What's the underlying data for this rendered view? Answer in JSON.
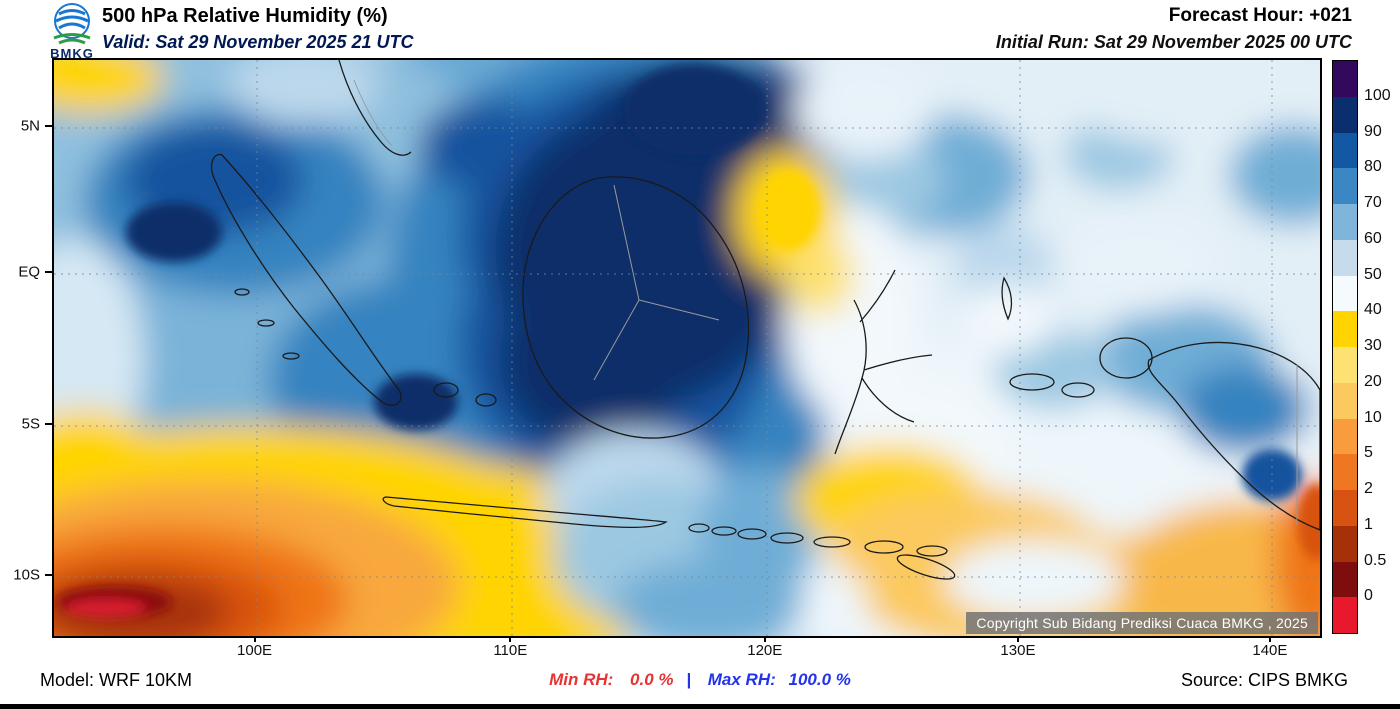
{
  "header": {
    "logo": "BMKG",
    "title": "500 hPa Relative Humidity (%)",
    "valid": "Valid: Sat 29 November 2025 21 UTC",
    "forecast_hour": "Forecast Hour: +021",
    "initial_run": "Initial Run: Sat 29 November 2025 00 UTC"
  },
  "map": {
    "x_ticks": [
      "100E",
      "110E",
      "120E",
      "130E",
      "140E"
    ],
    "y_ticks": [
      "5N",
      "EQ",
      "5S",
      "10S"
    ],
    "copyright": "Copyright Sub Bidang Prediksi Cuaca BMKG , 2025"
  },
  "colorbar": {
    "labels": [
      "100",
      "90",
      "80",
      "70",
      "60",
      "50",
      "40",
      "30",
      "20",
      "10",
      "5",
      "2",
      "1",
      "0.5",
      "0"
    ],
    "colors": [
      "#33095e",
      "#0b2e6e",
      "#1258a3",
      "#3a87c4",
      "#7fb5da",
      "#c6dcec",
      "#f5fafd",
      "#ffd400",
      "#fde171",
      "#fbc95d",
      "#f89c3e",
      "#f07722",
      "#d85211",
      "#a63008",
      "#7e0e0e",
      "#e8192c"
    ]
  },
  "theme": {
    "min_rh_color": "#e63333",
    "max_rh_color": "#2233ee",
    "valid_text_color": "#001852"
  },
  "footer": {
    "model": "Model: WRF 10KM",
    "min_label": "Min RH:",
    "min_value": "0.0 %",
    "separator": "|",
    "max_label": "Max RH:",
    "max_value": "100.0 %",
    "source": "Source: CIPS BMKG"
  }
}
